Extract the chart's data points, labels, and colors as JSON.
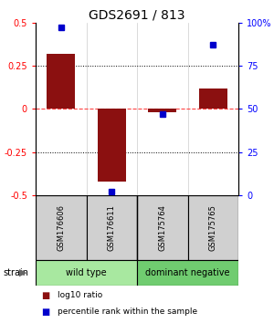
{
  "title": "GDS2691 / 813",
  "samples": [
    "GSM176606",
    "GSM176611",
    "GSM175764",
    "GSM175765"
  ],
  "log10_ratio": [
    0.32,
    -0.42,
    -0.02,
    0.12
  ],
  "percentile_rank": [
    97,
    2,
    47,
    87
  ],
  "groups": [
    {
      "label": "wild type",
      "samples": [
        0,
        1
      ],
      "color": "#a8e8a0"
    },
    {
      "label": "dominant negative",
      "samples": [
        2,
        3
      ],
      "color": "#70cc70"
    }
  ],
  "bar_color": "#8B1010",
  "dot_color": "#0000CC",
  "ylim_left": [
    -0.5,
    0.5
  ],
  "ylim_right": [
    0,
    100
  ],
  "yticks_left": [
    -0.5,
    -0.25,
    0,
    0.25,
    0.5
  ],
  "yticks_right": [
    0,
    25,
    50,
    75,
    100
  ],
  "ytick_labels_right": [
    "0",
    "25",
    "50",
    "75",
    "100%"
  ],
  "hline_color": "#FF4444",
  "legend_items": [
    {
      "label": "log10 ratio",
      "color": "#8B1010"
    },
    {
      "label": "percentile rank within the sample",
      "color": "#0000CC"
    }
  ],
  "bar_width": 0.55
}
